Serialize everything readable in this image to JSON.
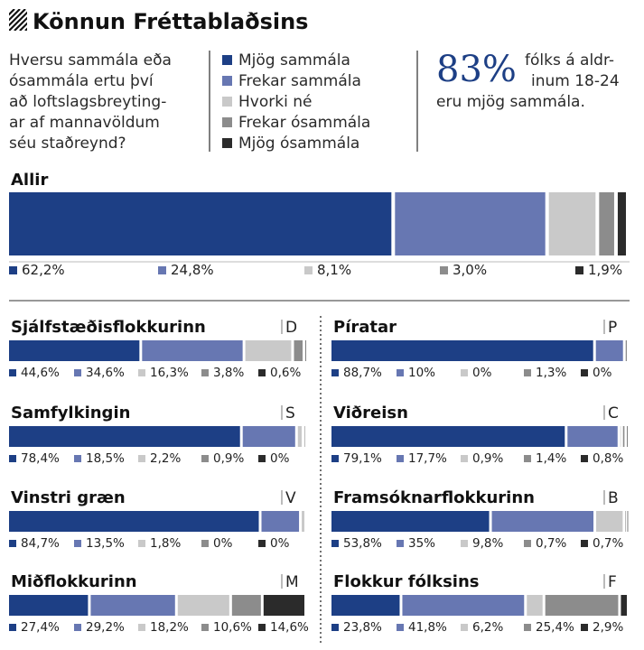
{
  "header": {
    "title": "Könnun Fréttablaðsins",
    "question": [
      "Hversu sammála eða",
      "ósammála ertu því",
      "að loftslagsbreyting-",
      "ar af mannavöldum",
      "séu staðreynd?"
    ],
    "highlight": {
      "value": "83%",
      "text": [
        "fólks á aldr-",
        "inum 18-24",
        "eru mjög sammála."
      ]
    }
  },
  "chart_data": {
    "type": "bar",
    "orientation": "horizontal-stacked-100",
    "legend": [
      "Mjög sammála",
      "Frekar sammála",
      "Hvorki né",
      "Frekar ósammála",
      "Mjög ósammála"
    ],
    "legend_position": "top",
    "colors": [
      "#1d3f85",
      "#6777b2",
      "#c9c9c9",
      "#8c8c8c",
      "#2b2b2b"
    ],
    "overall": {
      "name": "Allir",
      "values": [
        62.2,
        24.8,
        8.1,
        3.0,
        1.9
      ],
      "labels": [
        "62,2%",
        "24,8%",
        "8,1%",
        "3,0%",
        "1,9%"
      ]
    },
    "groups": [
      {
        "name": "Sjálfstæðisflokkurinn",
        "letter": "D",
        "values": [
          44.6,
          34.6,
          16.3,
          3.8,
          0.6
        ],
        "labels": [
          "44,6%",
          "34,6%",
          "16,3%",
          "3,8%",
          "0,6%"
        ]
      },
      {
        "name": "Píratar",
        "letter": "P",
        "values": [
          88.7,
          10,
          0,
          1.3,
          0
        ],
        "labels": [
          "88,7%",
          "10%",
          "0%",
          "1,3%",
          "0%"
        ]
      },
      {
        "name": "Samfylkingin",
        "letter": "S",
        "values": [
          78.4,
          18.5,
          2.2,
          0.9,
          0
        ],
        "labels": [
          "78,4%",
          "18,5%",
          "2,2%",
          "0,9%",
          "0%"
        ]
      },
      {
        "name": "Viðreisn",
        "letter": "C",
        "values": [
          79.1,
          17.7,
          0.9,
          1.4,
          0.8
        ],
        "labels": [
          "79,1%",
          "17,7%",
          "0,9%",
          "1,4%",
          "0,8%"
        ]
      },
      {
        "name": "Vinstri græn",
        "letter": "V",
        "values": [
          84.7,
          13.5,
          1.8,
          0,
          0
        ],
        "labels": [
          "84,7%",
          "13,5%",
          "1,8%",
          "0%",
          "0%"
        ]
      },
      {
        "name": "Framsóknarflokkurinn",
        "letter": "B",
        "values": [
          53.8,
          35,
          9.8,
          0.7,
          0.7
        ],
        "labels": [
          "53,8%",
          "35%",
          "9,8%",
          "0,7%",
          "0,7%"
        ]
      },
      {
        "name": "Miðflokkurinn",
        "letter": "M",
        "values": [
          27.4,
          29.2,
          18.2,
          10.6,
          14.6
        ],
        "labels": [
          "27,4%",
          "29,2%",
          "18,2%",
          "10,6%",
          "14,6%"
        ]
      },
      {
        "name": "Flokkur fólksins",
        "letter": "F",
        "values": [
          23.8,
          41.8,
          6.2,
          25.4,
          2.9
        ],
        "labels": [
          "23,8%",
          "41,8%",
          "6,2%",
          "25,4%",
          "2,9%"
        ]
      }
    ]
  }
}
